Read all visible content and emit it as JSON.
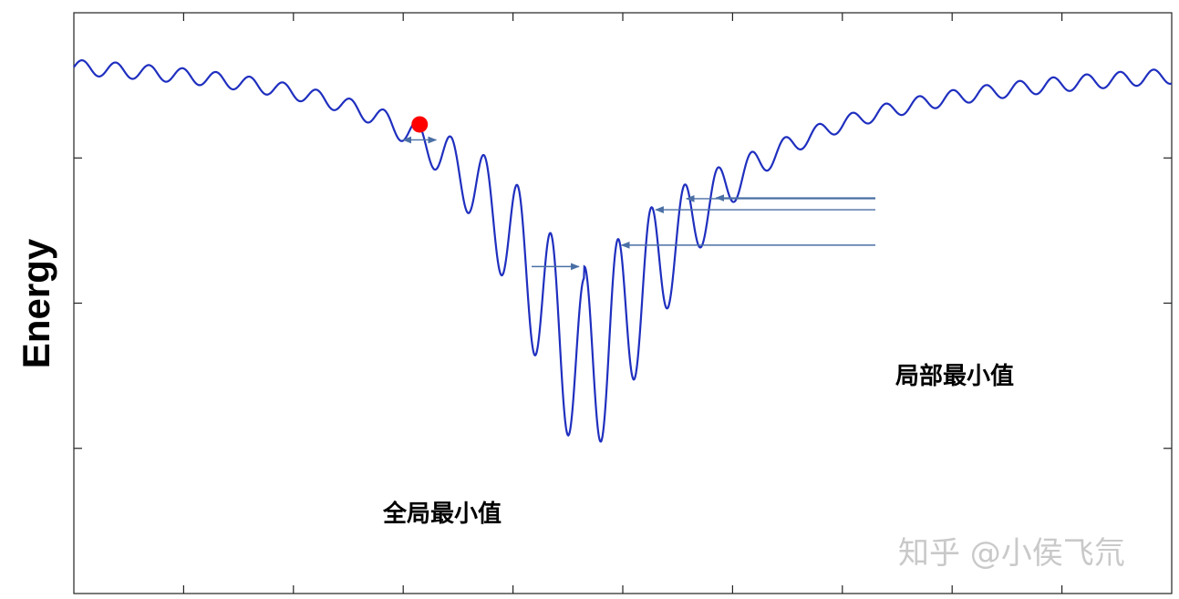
{
  "chart_data": {
    "type": "line",
    "ylabel": "Energy",
    "xlabel": "",
    "title": "",
    "xlim": [
      0,
      100
    ],
    "ylim": [
      0,
      100
    ],
    "grid": false,
    "x_tick_count": 10,
    "y_tick_count": 4,
    "curve_style": {
      "color": "#1f2fbf",
      "baseline_left": 94,
      "baseline_right": 93,
      "valley_center": 46.5,
      "valley_depth_left": 55,
      "valley_depth_right": 53,
      "valley_width_left": 8.5,
      "valley_width_right": 11,
      "ripple_period": 3.05,
      "ripple_amp_base": 1.3,
      "ripple_amp_left": 14,
      "ripple_amp_right": 15
    },
    "ball": {
      "x": 31.5,
      "color": "#ff0000"
    },
    "annotations": {
      "global_min_label": "全局最小值",
      "local_min_label": "局部最小值",
      "global_min_x": 46.5,
      "local_min_xs": [
        49.4,
        52.5,
        55.3,
        58.0
      ],
      "arrow_color": "#4a6fa5"
    }
  },
  "watermark": "知乎 @小侯飞氘"
}
